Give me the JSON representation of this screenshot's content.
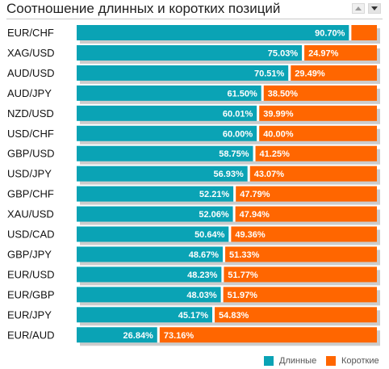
{
  "header": {
    "title": "Соотношение длинных и коротких позиций"
  },
  "colors": {
    "long": "#0aa3b5",
    "short": "#ff6600",
    "track": "#cccccc"
  },
  "legend": {
    "long_label": "Длинные",
    "short_label": "Короткие"
  },
  "chart_data": {
    "type": "bar",
    "stacked": true,
    "orientation": "horizontal",
    "title": "Соотношение длинных и коротких позиций",
    "unit": "%",
    "xlim": [
      0,
      100
    ],
    "categories": [
      "EUR/CHF",
      "XAG/USD",
      "AUD/USD",
      "AUD/JPY",
      "NZD/USD",
      "USD/CHF",
      "GBP/USD",
      "USD/JPY",
      "GBP/CHF",
      "XAU/USD",
      "USD/CAD",
      "GBP/JPY",
      "EUR/USD",
      "EUR/GBP",
      "EUR/JPY",
      "EUR/AUD"
    ],
    "series": [
      {
        "name": "Длинные",
        "values": [
          90.7,
          75.03,
          70.51,
          61.5,
          60.01,
          60.0,
          58.75,
          56.93,
          52.21,
          52.06,
          50.64,
          48.67,
          48.23,
          48.03,
          45.17,
          26.84
        ],
        "labels": [
          "90.70%",
          "75.03%",
          "70.51%",
          "61.50%",
          "60.01%",
          "60.00%",
          "58.75%",
          "56.93%",
          "52.21%",
          "52.06%",
          "50.64%",
          "48.67%",
          "48.23%",
          "48.03%",
          "45.17%",
          "26.84%"
        ]
      },
      {
        "name": "Короткие",
        "values": [
          9.3,
          24.97,
          29.49,
          38.5,
          39.99,
          40.0,
          41.25,
          43.07,
          47.79,
          47.94,
          49.36,
          51.33,
          51.77,
          51.97,
          54.83,
          73.16
        ],
        "labels": [
          "",
          "24.97%",
          "29.49%",
          "38.50%",
          "39.99%",
          "40.00%",
          "41.25%",
          "43.07%",
          "47.79%",
          "47.94%",
          "49.36%",
          "51.33%",
          "51.77%",
          "51.97%",
          "54.83%",
          "73.16%"
        ]
      }
    ],
    "legend_position": "bottom-right",
    "grid": false
  }
}
